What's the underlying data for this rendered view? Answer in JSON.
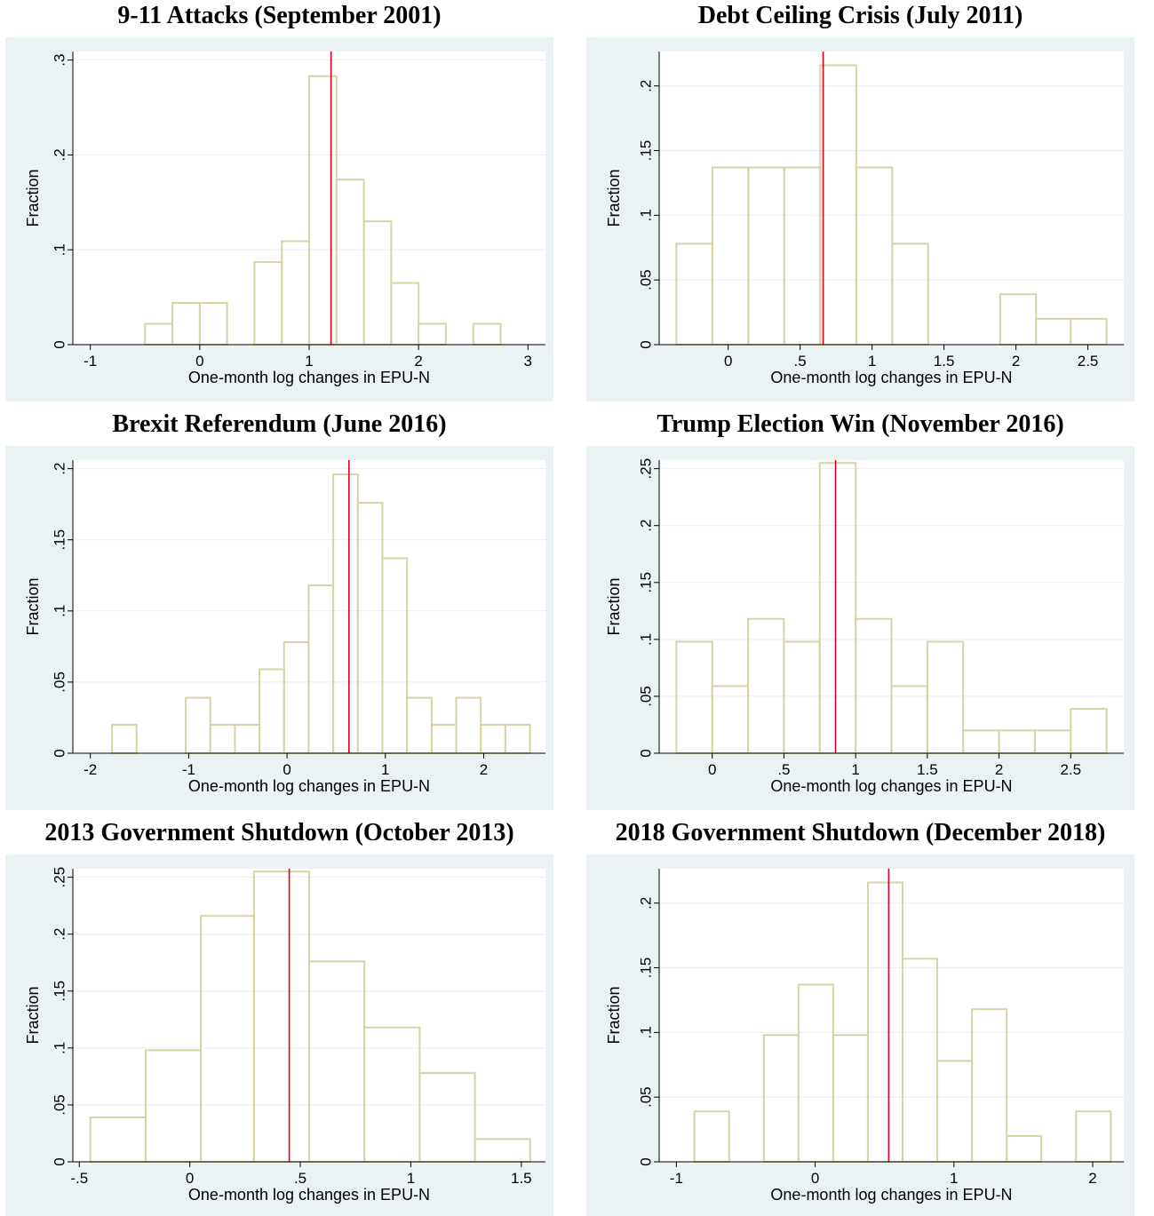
{
  "colors": {
    "panel_background": "#eaf2f3",
    "plot_background": "#ffffff",
    "bar_outline": "#d8d3a6",
    "event_line": "#e0001b",
    "grid": "#e8eeee"
  },
  "chart_data": [
    {
      "type": "bar",
      "title": "9-11 Attacks (September 2001)",
      "xlabel": "One-month log changes in EPU-N",
      "ylabel": "Fraction",
      "xlim": [
        -1.0,
        3.0
      ],
      "ylim": [
        0,
        0.3
      ],
      "xticks": [
        -1,
        0,
        1,
        2,
        3
      ],
      "xtick_labels": [
        "-1",
        "0",
        "1",
        "2",
        "3"
      ],
      "yticks": [
        0,
        0.1,
        0.2,
        0.3
      ],
      "ytick_labels": [
        "0",
        ".1",
        ".2",
        ".3"
      ],
      "grid": true,
      "event_value": 1.2,
      "bins": [
        {
          "x0": -0.5,
          "x1": -0.25,
          "value": 0.022
        },
        {
          "x0": -0.25,
          "x1": 0.0,
          "value": 0.044
        },
        {
          "x0": 0.0,
          "x1": 0.25,
          "value": 0.044
        },
        {
          "x0": 0.5,
          "x1": 0.75,
          "value": 0.087
        },
        {
          "x0": 0.75,
          "x1": 1.0,
          "value": 0.109
        },
        {
          "x0": 1.0,
          "x1": 1.25,
          "value": 0.283
        },
        {
          "x0": 1.25,
          "x1": 1.5,
          "value": 0.174
        },
        {
          "x0": 1.5,
          "x1": 1.75,
          "value": 0.13
        },
        {
          "x0": 1.75,
          "x1": 2.0,
          "value": 0.065
        },
        {
          "x0": 2.0,
          "x1": 2.25,
          "value": 0.022
        },
        {
          "x0": 2.5,
          "x1": 2.75,
          "value": 0.022
        }
      ]
    },
    {
      "type": "bar",
      "title": "Debt Ceiling Crisis (July 2011)",
      "xlabel": "One-month log changes in EPU-N",
      "ylabel": "Fraction",
      "xlim": [
        -0.36,
        2.63
      ],
      "ylim": [
        0,
        0.22
      ],
      "xticks": [
        0,
        0.5,
        1,
        1.5,
        2,
        2.5
      ],
      "xtick_labels": [
        "0",
        ".5",
        "1",
        "1.5",
        "2",
        "2.5"
      ],
      "yticks": [
        0,
        0.05,
        0.1,
        0.15,
        0.2
      ],
      "ytick_labels": [
        "0",
        ".05",
        ".1",
        ".15",
        ".2"
      ],
      "grid": true,
      "event_value": 0.66,
      "bins": [
        {
          "x0": -0.36,
          "x1": -0.11,
          "value": 0.078
        },
        {
          "x0": -0.11,
          "x1": 0.14,
          "value": 0.137
        },
        {
          "x0": 0.14,
          "x1": 0.39,
          "value": 0.137
        },
        {
          "x0": 0.39,
          "x1": 0.64,
          "value": 0.137
        },
        {
          "x0": 0.64,
          "x1": 0.89,
          "value": 0.216
        },
        {
          "x0": 0.89,
          "x1": 1.14,
          "value": 0.137
        },
        {
          "x0": 1.14,
          "x1": 1.39,
          "value": 0.078
        },
        {
          "x0": 1.89,
          "x1": 2.14,
          "value": 0.039
        },
        {
          "x0": 2.14,
          "x1": 2.38,
          "value": 0.02
        },
        {
          "x0": 2.38,
          "x1": 2.63,
          "value": 0.02
        }
      ]
    },
    {
      "type": "bar",
      "title": "Brexit Referendum (June 2016)",
      "xlabel": "One-month log changes in EPU-N",
      "ylabel": "Fraction",
      "xlim": [
        -2.0,
        2.45
      ],
      "ylim": [
        0,
        0.2
      ],
      "xticks": [
        -2,
        -1,
        0,
        1,
        2
      ],
      "xtick_labels": [
        "-2",
        "-1",
        "0",
        "1",
        "2"
      ],
      "yticks": [
        0,
        0.05,
        0.1,
        0.15,
        0.2
      ],
      "ytick_labels": [
        "0",
        ".05",
        ".1",
        ".15",
        ".2"
      ],
      "grid": true,
      "event_value": 0.63,
      "bins": [
        {
          "x0": -1.78,
          "x1": -1.53,
          "value": 0.02
        },
        {
          "x0": -1.03,
          "x1": -0.78,
          "value": 0.039
        },
        {
          "x0": -0.78,
          "x1": -0.53,
          "value": 0.02
        },
        {
          "x0": -0.53,
          "x1": -0.28,
          "value": 0.02
        },
        {
          "x0": -0.28,
          "x1": -0.03,
          "value": 0.059
        },
        {
          "x0": -0.03,
          "x1": 0.22,
          "value": 0.078
        },
        {
          "x0": 0.22,
          "x1": 0.47,
          "value": 0.118
        },
        {
          "x0": 0.47,
          "x1": 0.72,
          "value": 0.196
        },
        {
          "x0": 0.72,
          "x1": 0.97,
          "value": 0.176
        },
        {
          "x0": 0.97,
          "x1": 1.22,
          "value": 0.137
        },
        {
          "x0": 1.22,
          "x1": 1.47,
          "value": 0.039
        },
        {
          "x0": 1.47,
          "x1": 1.72,
          "value": 0.02
        },
        {
          "x0": 1.72,
          "x1": 1.97,
          "value": 0.039
        },
        {
          "x0": 1.97,
          "x1": 2.22,
          "value": 0.02
        },
        {
          "x0": 2.22,
          "x1": 2.47,
          "value": 0.02
        }
      ]
    },
    {
      "type": "bar",
      "title": "Trump Election Win (November 2016)",
      "xlabel": "One-month log changes in EPU-N",
      "ylabel": "Fraction",
      "xlim": [
        -0.25,
        2.75
      ],
      "ylim": [
        0,
        0.25
      ],
      "xticks": [
        0,
        0.5,
        1,
        1.5,
        2,
        2.5
      ],
      "xtick_labels": [
        "0",
        ".5",
        "1",
        "1.5",
        "2",
        "2.5"
      ],
      "yticks": [
        0,
        0.05,
        0.1,
        0.15,
        0.2,
        0.25
      ],
      "ytick_labels": [
        "0",
        ".05",
        ".1",
        ".15",
        ".2",
        ".25"
      ],
      "grid": true,
      "event_value": 0.86,
      "bins": [
        {
          "x0": -0.25,
          "x1": 0.0,
          "value": 0.098
        },
        {
          "x0": 0.0,
          "x1": 0.25,
          "value": 0.059
        },
        {
          "x0": 0.25,
          "x1": 0.5,
          "value": 0.118
        },
        {
          "x0": 0.5,
          "x1": 0.75,
          "value": 0.098
        },
        {
          "x0": 0.75,
          "x1": 1.0,
          "value": 0.255
        },
        {
          "x0": 1.0,
          "x1": 1.25,
          "value": 0.118
        },
        {
          "x0": 1.25,
          "x1": 1.5,
          "value": 0.059
        },
        {
          "x0": 1.5,
          "x1": 1.75,
          "value": 0.098
        },
        {
          "x0": 1.75,
          "x1": 2.0,
          "value": 0.02
        },
        {
          "x0": 2.0,
          "x1": 2.25,
          "value": 0.02
        },
        {
          "x0": 2.25,
          "x1": 2.5,
          "value": 0.02
        },
        {
          "x0": 2.5,
          "x1": 2.75,
          "value": 0.039
        }
      ]
    },
    {
      "type": "bar",
      "title": "2013 Government Shutdown (October 2013)",
      "xlabel": "One-month log changes in EPU-N",
      "ylabel": "Fraction",
      "xlim": [
        -0.45,
        1.53
      ],
      "ylim": [
        0,
        0.25
      ],
      "xticks": [
        -0.5,
        0,
        0.5,
        1,
        1.5
      ],
      "xtick_labels": [
        "-.5",
        "0",
        ".5",
        "1",
        "1.5"
      ],
      "yticks": [
        0,
        0.05,
        0.1,
        0.15,
        0.2,
        0.25
      ],
      "ytick_labels": [
        "0",
        ".05",
        ".1",
        ".15",
        ".2",
        ".25"
      ],
      "grid": true,
      "event_value": 0.45,
      "bins": [
        {
          "x0": -0.45,
          "x1": -0.2,
          "value": 0.039
        },
        {
          "x0": -0.2,
          "x1": 0.05,
          "value": 0.098
        },
        {
          "x0": 0.05,
          "x1": 0.29,
          "value": 0.216
        },
        {
          "x0": 0.29,
          "x1": 0.54,
          "value": 0.255
        },
        {
          "x0": 0.54,
          "x1": 0.79,
          "value": 0.176
        },
        {
          "x0": 0.79,
          "x1": 1.04,
          "value": 0.118
        },
        {
          "x0": 1.04,
          "x1": 1.29,
          "value": 0.078
        },
        {
          "x0": 1.29,
          "x1": 1.54,
          "value": 0.02
        }
      ]
    },
    {
      "type": "bar",
      "title": "2018 Government Shutdown (December 2018)",
      "xlabel": "One-month log changes in EPU-N",
      "ylabel": "Fraction",
      "xlim": [
        -1.0,
        2.1
      ],
      "ylim": [
        0,
        0.22
      ],
      "xticks": [
        -1,
        0,
        1,
        2
      ],
      "xtick_labels": [
        "-1",
        "0",
        "1",
        "2"
      ],
      "yticks": [
        0,
        0.05,
        0.1,
        0.15,
        0.2
      ],
      "ytick_labels": [
        "0",
        ".05",
        ".1",
        ".15",
        ".2"
      ],
      "grid": true,
      "event_value": 0.53,
      "bins": [
        {
          "x0": -0.87,
          "x1": -0.62,
          "value": 0.039
        },
        {
          "x0": -0.37,
          "x1": -0.12,
          "value": 0.098
        },
        {
          "x0": -0.12,
          "x1": 0.13,
          "value": 0.137
        },
        {
          "x0": 0.13,
          "x1": 0.38,
          "value": 0.098
        },
        {
          "x0": 0.38,
          "x1": 0.63,
          "value": 0.216
        },
        {
          "x0": 0.63,
          "x1": 0.88,
          "value": 0.157
        },
        {
          "x0": 0.88,
          "x1": 1.13,
          "value": 0.078
        },
        {
          "x0": 1.13,
          "x1": 1.38,
          "value": 0.118
        },
        {
          "x0": 1.38,
          "x1": 1.63,
          "value": 0.02
        },
        {
          "x0": 1.88,
          "x1": 2.13,
          "value": 0.039
        }
      ]
    }
  ]
}
